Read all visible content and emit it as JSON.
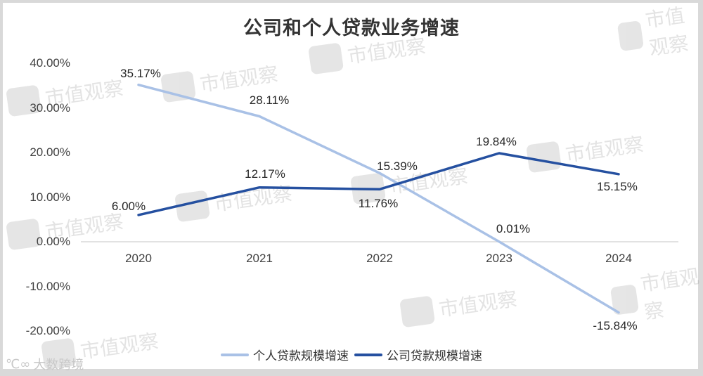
{
  "title": "公司和个人贷款业务增速",
  "watermark": "市值观察",
  "logo": {
    "text": "大数跨境",
    "glyph": "℃∞"
  },
  "axis": {
    "y_ticks": [
      "40.00%",
      "30.00%",
      "20.00%",
      "10.00%",
      "0.00%",
      "-10.00%",
      "-20.00%"
    ],
    "x_ticks": [
      "2020",
      "2021",
      "2022",
      "2023",
      "2024"
    ]
  },
  "legend": [
    {
      "label": "个人贷款规模增速",
      "color": "#a9c1e6"
    },
    {
      "label": "公司贷款规模增速",
      "color": "#2550a0"
    }
  ],
  "labels": {
    "personal": [
      "35.17%",
      "28.11%",
      "15.39%",
      "0.01%",
      "-15.84%"
    ],
    "corporate": [
      "6.00%",
      "12.17%",
      "11.76%",
      "19.84%",
      "15.15%"
    ]
  },
  "chart_data": {
    "type": "line",
    "title": "公司和个人贷款业务增速",
    "xlabel": "",
    "ylabel": "",
    "categories": [
      "2020",
      "2021",
      "2022",
      "2023",
      "2024"
    ],
    "series": [
      {
        "name": "个人贷款规模增速",
        "color": "#a9c1e6",
        "values": [
          35.17,
          28.11,
          15.39,
          0.01,
          -15.84
        ]
      },
      {
        "name": "公司贷款规模增速",
        "color": "#2550a0",
        "values": [
          6.0,
          12.17,
          11.76,
          19.84,
          15.15
        ]
      }
    ],
    "ylim": [
      -20,
      40
    ],
    "y_ticks": [
      40,
      30,
      20,
      10,
      0,
      -10,
      -20
    ],
    "y_tick_format": "percent_2dp",
    "grid": false,
    "zero_line": true,
    "legend_position": "bottom",
    "data_labels": true
  }
}
